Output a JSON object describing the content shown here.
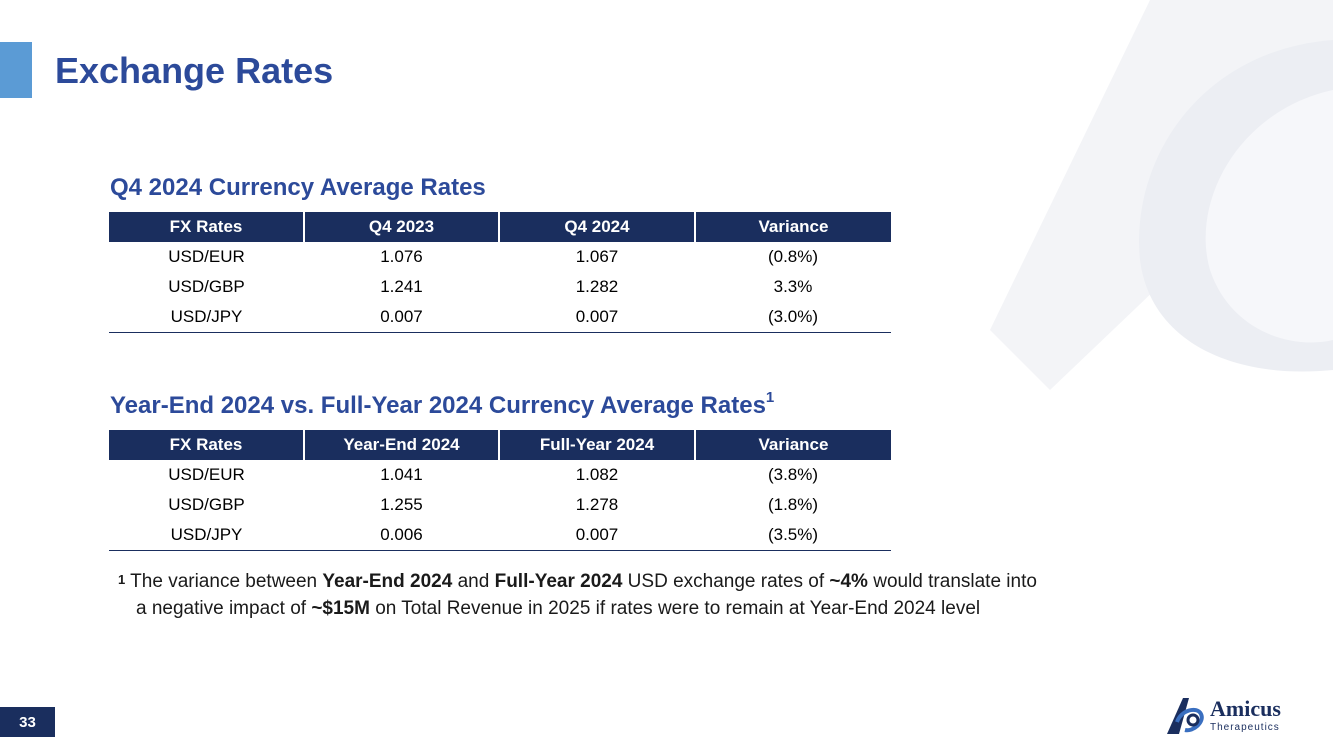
{
  "page": {
    "title": "Exchange Rates",
    "page_number": "33"
  },
  "section1": {
    "heading": "Q4 2024 Currency Average Rates",
    "headers": [
      "FX Rates",
      "Q4 2023",
      "Q4 2024",
      "Variance"
    ],
    "rows": [
      [
        "USD/EUR",
        "1.076",
        "1.067",
        "(0.8%)"
      ],
      [
        "USD/GBP",
        "1.241",
        "1.282",
        "3.3%"
      ],
      [
        "USD/JPY",
        "0.007",
        "0.007",
        "(3.0%)"
      ]
    ]
  },
  "section2": {
    "heading": "Year-End 2024 vs. Full-Year 2024 Currency Average Rates",
    "heading_sup": "1",
    "headers": [
      "FX Rates",
      "Year-End 2024",
      "Full-Year 2024",
      "Variance"
    ],
    "rows": [
      [
        "USD/EUR",
        "1.041",
        "1.082",
        "(3.8%)"
      ],
      [
        "USD/GBP",
        "1.255",
        "1.278",
        "(1.8%)"
      ],
      [
        "USD/JPY",
        "0.006",
        "0.007",
        "(3.5%)"
      ]
    ]
  },
  "footnote": {
    "marker": "1",
    "t1": " The variance between ",
    "b1": "Year-End 2024",
    "t2": " and ",
    "b2": "Full-Year 2024",
    "t3": " USD exchange rates of ",
    "b3": "~4%",
    "t4": " would translate into",
    "t5": "a negative impact of ",
    "b4": "~$15M",
    "t6": " on Total Revenue in 2025 if rates were to remain at Year-End 2024 level"
  },
  "logo": {
    "name": "Amicus",
    "subtitle": "Therapeutics"
  },
  "colors": {
    "title_blue": "#2c4a9a",
    "header_navy": "#1a2e5e",
    "accent_light_blue": "#5b9bd5"
  }
}
